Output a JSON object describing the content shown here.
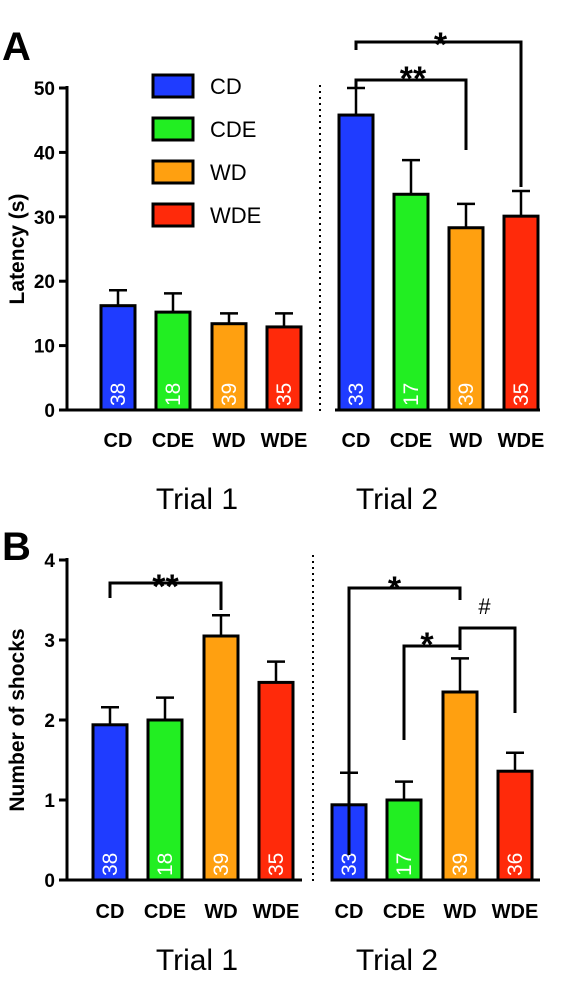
{
  "colors": {
    "CD": "#1f3cff",
    "CDE": "#22ee22",
    "WD": "#ffa010",
    "WDE": "#ff2a0a"
  },
  "legend": [
    "CD",
    "CDE",
    "WD",
    "WDE"
  ],
  "chart_data": [
    {
      "type": "bar",
      "panel": "A",
      "ylabel": "Latency (s)",
      "ylim": [
        0,
        50
      ],
      "yticks": [
        0,
        10,
        20,
        30,
        40,
        50
      ],
      "groups": [
        {
          "label": "Trial 1",
          "categories": [
            "CD",
            "CDE",
            "WD",
            "WDE"
          ],
          "values": [
            16.2,
            15.2,
            13.4,
            12.9
          ],
          "errors": [
            2.4,
            2.9,
            1.6,
            2.1
          ],
          "n": [
            "38",
            "18",
            "39",
            "35"
          ]
        },
        {
          "label": "Trial 2",
          "categories": [
            "CD",
            "CDE",
            "WD",
            "WDE"
          ],
          "values": [
            45.8,
            33.5,
            28.3,
            30.1
          ],
          "errors": [
            4.2,
            5.3,
            3.7,
            3.9
          ],
          "n": [
            "33",
            "17",
            "39",
            "35"
          ]
        }
      ],
      "significance": [
        {
          "group": 1,
          "from": 0,
          "to": 2,
          "label": "**"
        },
        {
          "group": 1,
          "from": 0,
          "to": 3,
          "label": "*"
        }
      ]
    },
    {
      "type": "bar",
      "panel": "B",
      "ylabel": "Number of shocks",
      "ylim": [
        0,
        4
      ],
      "yticks": [
        0,
        1,
        2,
        3,
        4
      ],
      "groups": [
        {
          "label": "Trial 1",
          "categories": [
            "CD",
            "CDE",
            "WD",
            "WDE"
          ],
          "values": [
            1.94,
            2.0,
            3.05,
            2.47
          ],
          "errors": [
            0.22,
            0.28,
            0.26,
            0.26
          ],
          "n": [
            "38",
            "18",
            "39",
            "35"
          ]
        },
        {
          "label": "Trial 2",
          "categories": [
            "CD",
            "CDE",
            "WD",
            "WDE"
          ],
          "values": [
            0.94,
            1.0,
            2.35,
            1.36
          ],
          "errors": [
            0.4,
            0.23,
            0.42,
            0.23
          ],
          "n": [
            "33",
            "17",
            "39",
            "36"
          ]
        }
      ],
      "significance": [
        {
          "group": 0,
          "from": 0,
          "to": 2,
          "label": "**"
        },
        {
          "group": 1,
          "from": 0,
          "to": 2,
          "label": "*"
        },
        {
          "group": 1,
          "from": 1,
          "to": 2,
          "label": "*"
        },
        {
          "group": 1,
          "from": 2,
          "to": 3,
          "label": "#"
        }
      ]
    }
  ]
}
